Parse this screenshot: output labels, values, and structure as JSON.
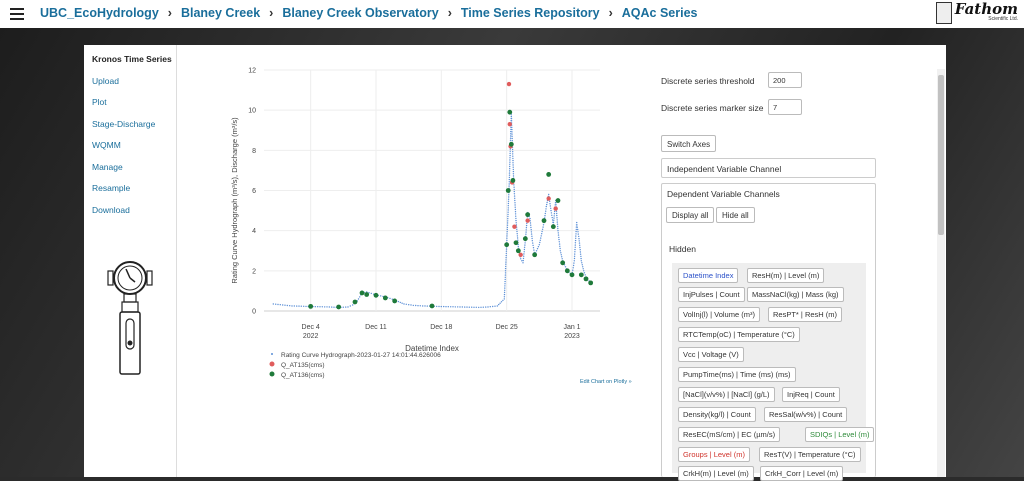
{
  "breadcrumb": [
    "UBC_EcoHydrology",
    "Blaney Creek",
    "Blaney Creek Observatory",
    "Time Series Repository",
    "AQAc Series"
  ],
  "logo": {
    "main": "Fathom",
    "sub": "Scientific Ltd."
  },
  "sidebar": {
    "title": "Kronos Time Series",
    "items": [
      "Upload",
      "Plot",
      "Stage-Discharge",
      "WQMM",
      "Manage",
      "Resample",
      "Download"
    ]
  },
  "chart_data": {
    "type": "scatter",
    "xlabel": "Datetime Index",
    "ylabel": "Rating Curve Hydrograph (m³/s), Discharge (m³/s)",
    "ylim": [
      0,
      12
    ],
    "yticks": [
      "0",
      "2",
      "4",
      "6",
      "8",
      "10",
      "12"
    ],
    "xticks": [
      {
        "date": "2022-12-04",
        "label": "Dec 4",
        "sub": "2022"
      },
      {
        "date": "2022-12-11",
        "label": "Dec 11",
        "sub": ""
      },
      {
        "date": "2022-12-18",
        "label": "Dec 18",
        "sub": ""
      },
      {
        "date": "2022-12-25",
        "label": "Dec 25",
        "sub": ""
      },
      {
        "date": "2023-01-01",
        "label": "Jan 1",
        "sub": "2023"
      }
    ],
    "series": [
      {
        "name": "Rating Curve Hydrograph-2023-01-27 14:01:44.626006",
        "color": "#5b8fd6",
        "marker": "dot",
        "points": [
          [
            "2022-11-30",
            0.35
          ],
          [
            "2022-12-01",
            0.3
          ],
          [
            "2022-12-02",
            0.25
          ],
          [
            "2022-12-03",
            0.24
          ],
          [
            "2022-12-04",
            0.22
          ],
          [
            "2022-12-05",
            0.21
          ],
          [
            "2022-12-06",
            0.2
          ],
          [
            "2022-12-07",
            0.18
          ],
          [
            "2022-12-08",
            0.2
          ],
          [
            "2022-12-08T12:00",
            0.3
          ],
          [
            "2022-12-09",
            0.5
          ],
          [
            "2022-12-09T12:00",
            0.9
          ],
          [
            "2022-12-10",
            0.95
          ],
          [
            "2022-12-11",
            0.8
          ],
          [
            "2022-12-12",
            0.7
          ],
          [
            "2022-12-13",
            0.55
          ],
          [
            "2022-12-14",
            0.35
          ],
          [
            "2022-12-15",
            0.28
          ],
          [
            "2022-12-16",
            0.25
          ],
          [
            "2022-12-17",
            0.24
          ],
          [
            "2022-12-18",
            0.22
          ],
          [
            "2022-12-19",
            0.21
          ],
          [
            "2022-12-20",
            0.2
          ],
          [
            "2022-12-21",
            0.19
          ],
          [
            "2022-12-22",
            0.18
          ],
          [
            "2022-12-23",
            0.2
          ],
          [
            "2022-12-24",
            0.25
          ],
          [
            "2022-12-24T18:00",
            0.6
          ],
          [
            "2022-12-25",
            3.3
          ],
          [
            "2022-12-25T06:00",
            6.0
          ],
          [
            "2022-12-25T12:00",
            9.8
          ],
          [
            "2022-12-25T18:00",
            6.5
          ],
          [
            "2022-12-26",
            4.5
          ],
          [
            "2022-12-26T06:00",
            3.2
          ],
          [
            "2022-12-26T12:00",
            2.6
          ],
          [
            "2022-12-26T18:00",
            2.4
          ],
          [
            "2022-12-27",
            3.5
          ],
          [
            "2022-12-27T06:00",
            4.9
          ],
          [
            "2022-12-27T12:00",
            4.6
          ],
          [
            "2022-12-27T18:00",
            3.5
          ],
          [
            "2022-12-28",
            2.8
          ],
          [
            "2022-12-28T12:00",
            3.3
          ],
          [
            "2022-12-29",
            4.4
          ],
          [
            "2022-12-29T06:00",
            5.2
          ],
          [
            "2022-12-29T12:00",
            5.8
          ],
          [
            "2022-12-29T18:00",
            5.0
          ],
          [
            "2022-12-30",
            4.3
          ],
          [
            "2022-12-30T06:00",
            5.5
          ],
          [
            "2022-12-30T12:00",
            4.0
          ],
          [
            "2022-12-30T18:00",
            3.0
          ],
          [
            "2022-12-31",
            2.5
          ],
          [
            "2022-12-31T12:00",
            2.0
          ],
          [
            "2023-01-01",
            1.8
          ],
          [
            "2023-01-01T06:00",
            2.5
          ],
          [
            "2023-01-01T12:00",
            4.4
          ],
          [
            "2023-01-01T18:00",
            3.6
          ],
          [
            "2023-01-02",
            2.5
          ],
          [
            "2023-01-02T06:00",
            2.0
          ],
          [
            "2023-01-02T12:00",
            1.7
          ],
          [
            "2023-01-03",
            1.4
          ]
        ]
      },
      {
        "name": "Q_AT135(cms)",
        "color": "#e05c5c",
        "marker": "circle",
        "points": [
          [
            "2022-12-25T06:00",
            11.3
          ],
          [
            "2022-12-25T08:00",
            9.3
          ],
          [
            "2022-12-25T10:00",
            8.2
          ],
          [
            "2022-12-25T14:00",
            6.4
          ],
          [
            "2022-12-25T20:00",
            4.2
          ],
          [
            "2022-12-26T12:00",
            2.8
          ],
          [
            "2022-12-27T06:00",
            4.5
          ],
          [
            "2022-12-29T12:00",
            5.6
          ],
          [
            "2022-12-30T06:00",
            5.1
          ]
        ]
      },
      {
        "name": "Q_AT136(cms)",
        "color": "#1f7a3a",
        "marker": "circle",
        "points": [
          [
            "2022-12-04",
            0.23
          ],
          [
            "2022-12-07",
            0.2
          ],
          [
            "2022-12-08T18:00",
            0.45
          ],
          [
            "2022-12-09T12:00",
            0.9
          ],
          [
            "2022-12-10",
            0.82
          ],
          [
            "2022-12-11",
            0.78
          ],
          [
            "2022-12-12",
            0.65
          ],
          [
            "2022-12-13",
            0.5
          ],
          [
            "2022-12-17",
            0.25
          ],
          [
            "2022-12-25",
            3.3
          ],
          [
            "2022-12-25T04:00",
            6.0
          ],
          [
            "2022-12-25T08:00",
            9.9
          ],
          [
            "2022-12-25T12:00",
            8.3
          ],
          [
            "2022-12-25T16:00",
            6.5
          ],
          [
            "2022-12-26",
            3.4
          ],
          [
            "2022-12-26T06:00",
            3.0
          ],
          [
            "2022-12-27",
            3.6
          ],
          [
            "2022-12-27T06:00",
            4.8
          ],
          [
            "2022-12-28",
            2.8
          ],
          [
            "2022-12-29",
            4.5
          ],
          [
            "2022-12-29T12:00",
            6.8
          ],
          [
            "2022-12-30",
            4.2
          ],
          [
            "2022-12-30T12:00",
            5.5
          ],
          [
            "2022-12-31",
            2.4
          ],
          [
            "2022-12-31T12:00",
            2.0
          ],
          [
            "2023-01-01",
            1.8
          ],
          [
            "2023-01-02",
            1.8
          ],
          [
            "2023-01-02T12:00",
            1.6
          ],
          [
            "2023-01-03",
            1.4
          ]
        ]
      }
    ],
    "legend_position": "bottom-left"
  },
  "edit_link": "Edit Chart on Plotly »",
  "right_panel": {
    "threshold_label": "Discrete series threshold",
    "threshold_value": "200",
    "marker_size_label": "Discrete series marker size",
    "marker_size_value": "7",
    "switch_axes": "Switch Axes",
    "independent_label": "Independent Variable Channel",
    "dependent_label": "Dependent Variable Channels",
    "display_all": "Display all",
    "hide_all": "Hide all",
    "hidden_label": "Hidden",
    "chips": [
      {
        "text": "Datetime Index",
        "color": "blue"
      },
      {
        "text": "ResH(m) | Level (m)",
        "color": "normal"
      },
      {
        "text": "InjPulses | Count",
        "color": "normal"
      },
      {
        "text": "MassNaCl(kg) | Mass (kg)",
        "color": "normal"
      },
      {
        "text": "VolInj(l) | Volume (m³)",
        "color": "normal"
      },
      {
        "text": "ResPT* | ResH (m)",
        "color": "normal"
      },
      {
        "text": "RTCTemp(oC) | Temperature (°C)",
        "color": "normal"
      },
      {
        "text": "Vcc | Voltage (V)",
        "color": "normal"
      },
      {
        "text": "PumpTime(ms) | Time (ms) (ms)",
        "color": "normal"
      },
      {
        "text": "[NaCl](v/v%) | [NaCl] (g/L)",
        "color": "normal"
      },
      {
        "text": "InjReq | Count",
        "color": "normal"
      },
      {
        "text": "Density(kg/l) | Count",
        "color": "normal"
      },
      {
        "text": "ResSal(w/v%) | Count",
        "color": "normal"
      },
      {
        "text": "ResEC(mS/cm) | EC (µm/s)",
        "color": "normal"
      },
      {
        "text": "SDIQs | Level (m)",
        "color": "green"
      },
      {
        "text": "Groups | Level (m)",
        "color": "red"
      },
      {
        "text": "ResT(V) | Temperature (°C)",
        "color": "normal"
      },
      {
        "text": "CrkH(m) | Level (m)",
        "color": "normal"
      },
      {
        "text": "CrkH_Corr | Level (m)",
        "color": "normal"
      }
    ]
  }
}
